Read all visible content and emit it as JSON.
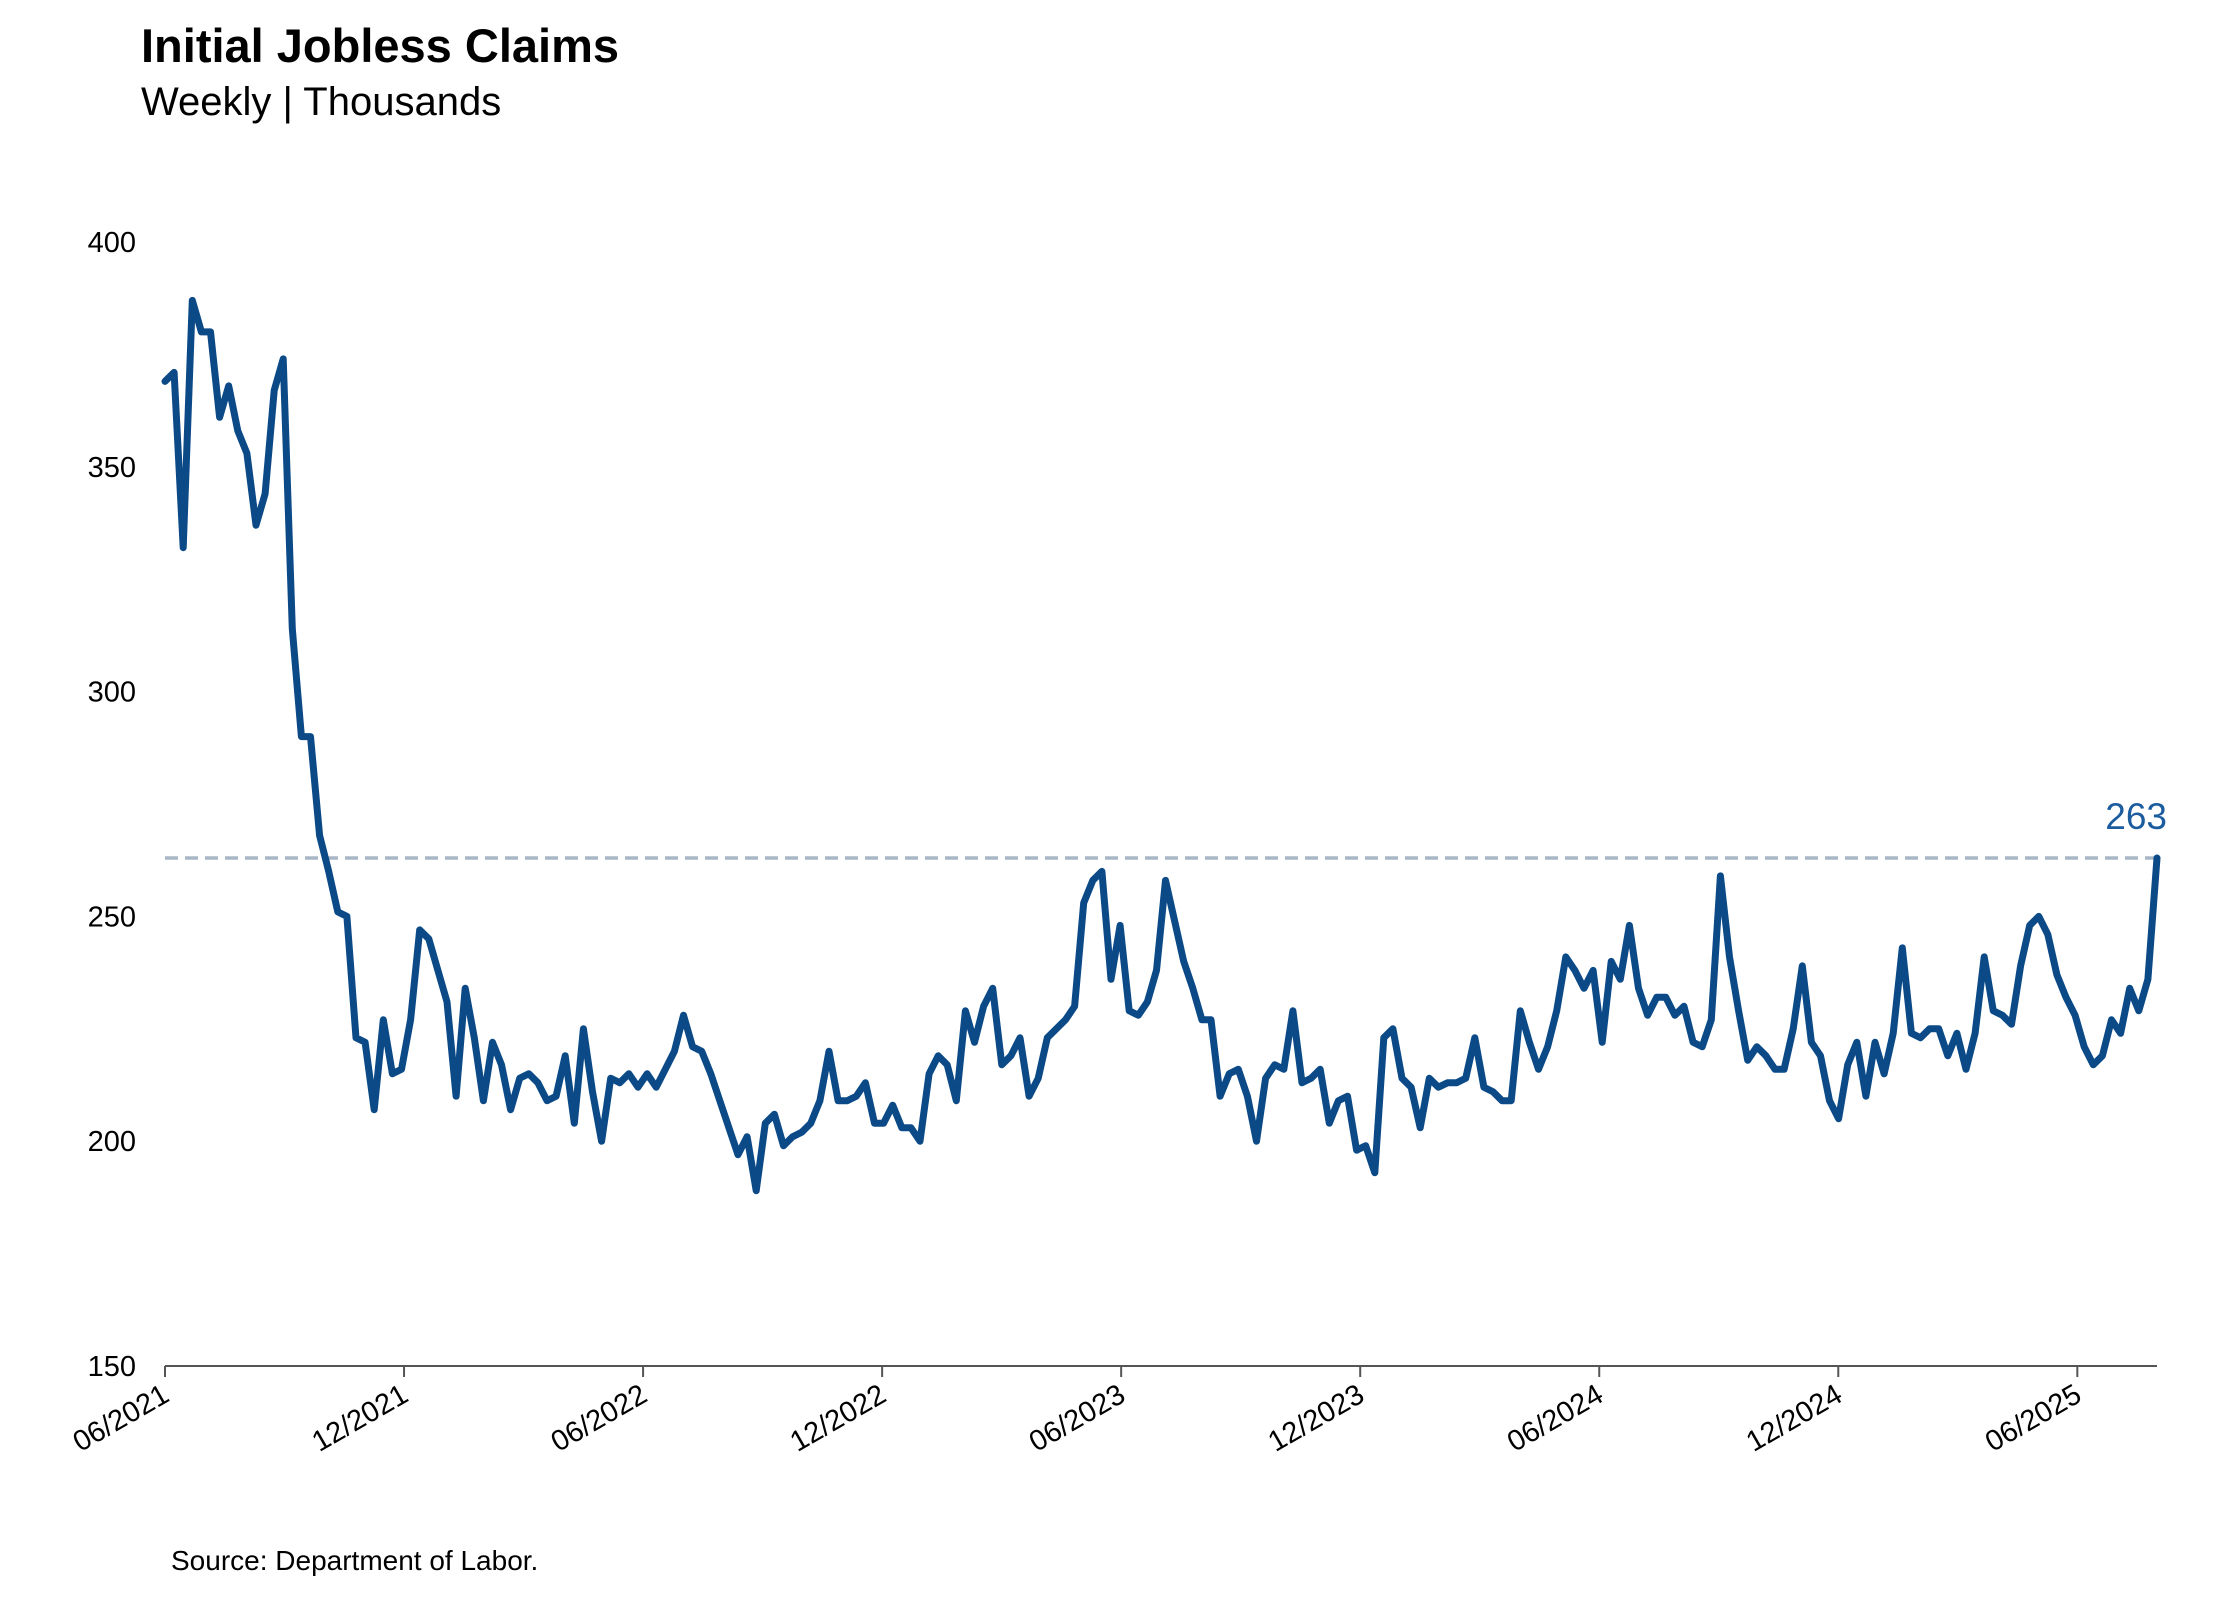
{
  "chart_data": {
    "type": "line",
    "title": "Initial Jobless Claims",
    "subtitle": "Weekly | Thousands",
    "source": "Source: Department of Labor.",
    "xlabel": "",
    "ylabel": "",
    "ylim": [
      150,
      400
    ],
    "yticks": [
      150,
      200,
      250,
      300,
      350,
      400
    ],
    "xticks": [
      "06/2021",
      "12/2021",
      "06/2022",
      "12/2022",
      "06/2023",
      "12/2023",
      "06/2024",
      "12/2024",
      "06/2025"
    ],
    "x_start": "06/2021",
    "x_end": "08/2025",
    "grid": false,
    "reference_line": {
      "value": 263,
      "label": "263",
      "style": "dashed"
    },
    "colors": {
      "line": "#0b4a87",
      "reference": "#a9b7c6",
      "label": "#1b5c9e",
      "axis": "#555555"
    },
    "series": [
      {
        "name": "",
        "values": [
          369,
          371,
          332,
          387,
          380,
          380,
          361,
          368,
          358,
          353,
          337,
          344,
          367,
          374,
          314,
          290,
          290,
          268,
          260,
          251,
          250,
          223,
          222,
          207,
          227,
          215,
          216,
          227,
          247,
          245,
          238,
          231,
          210,
          234,
          223,
          209,
          222,
          217,
          207,
          214,
          215,
          213,
          209,
          210,
          219,
          204,
          225,
          211,
          200,
          214,
          213,
          215,
          212,
          215,
          212,
          216,
          220,
          228,
          221,
          220,
          215,
          209,
          203,
          197,
          201,
          189,
          204,
          206,
          199,
          201,
          202,
          204,
          209,
          220,
          209,
          209,
          210,
          213,
          204,
          204,
          208,
          203,
          203,
          200,
          215,
          219,
          217,
          209,
          229,
          222,
          230,
          234,
          217,
          219,
          223,
          210,
          214,
          223,
          225,
          227,
          230,
          253,
          258,
          260,
          236,
          248,
          229,
          228,
          231,
          238,
          258,
          249,
          240,
          234,
          227,
          227,
          210,
          215,
          216,
          210,
          200,
          214,
          217,
          216,
          229,
          213,
          214,
          216,
          204,
          209,
          210,
          198,
          199,
          193,
          223,
          225,
          214,
          212,
          203,
          214,
          212,
          213,
          213,
          214,
          223,
          212,
          211,
          209,
          209,
          229,
          222,
          216,
          221,
          229,
          241,
          238,
          234,
          238,
          222,
          240,
          236,
          248,
          234,
          228,
          232,
          232,
          228,
          230,
          222,
          221,
          227,
          259,
          241,
          229,
          218,
          221,
          219,
          216,
          216,
          225,
          239,
          222,
          219,
          209,
          205,
          217,
          222,
          210,
          222,
          215,
          224,
          243,
          224,
          223,
          225,
          225,
          219,
          224,
          216,
          224,
          241,
          229,
          228,
          226,
          239,
          248,
          250,
          246,
          237,
          232,
          228,
          221,
          217,
          219,
          227,
          224,
          234,
          229,
          236,
          263
        ]
      }
    ]
  }
}
